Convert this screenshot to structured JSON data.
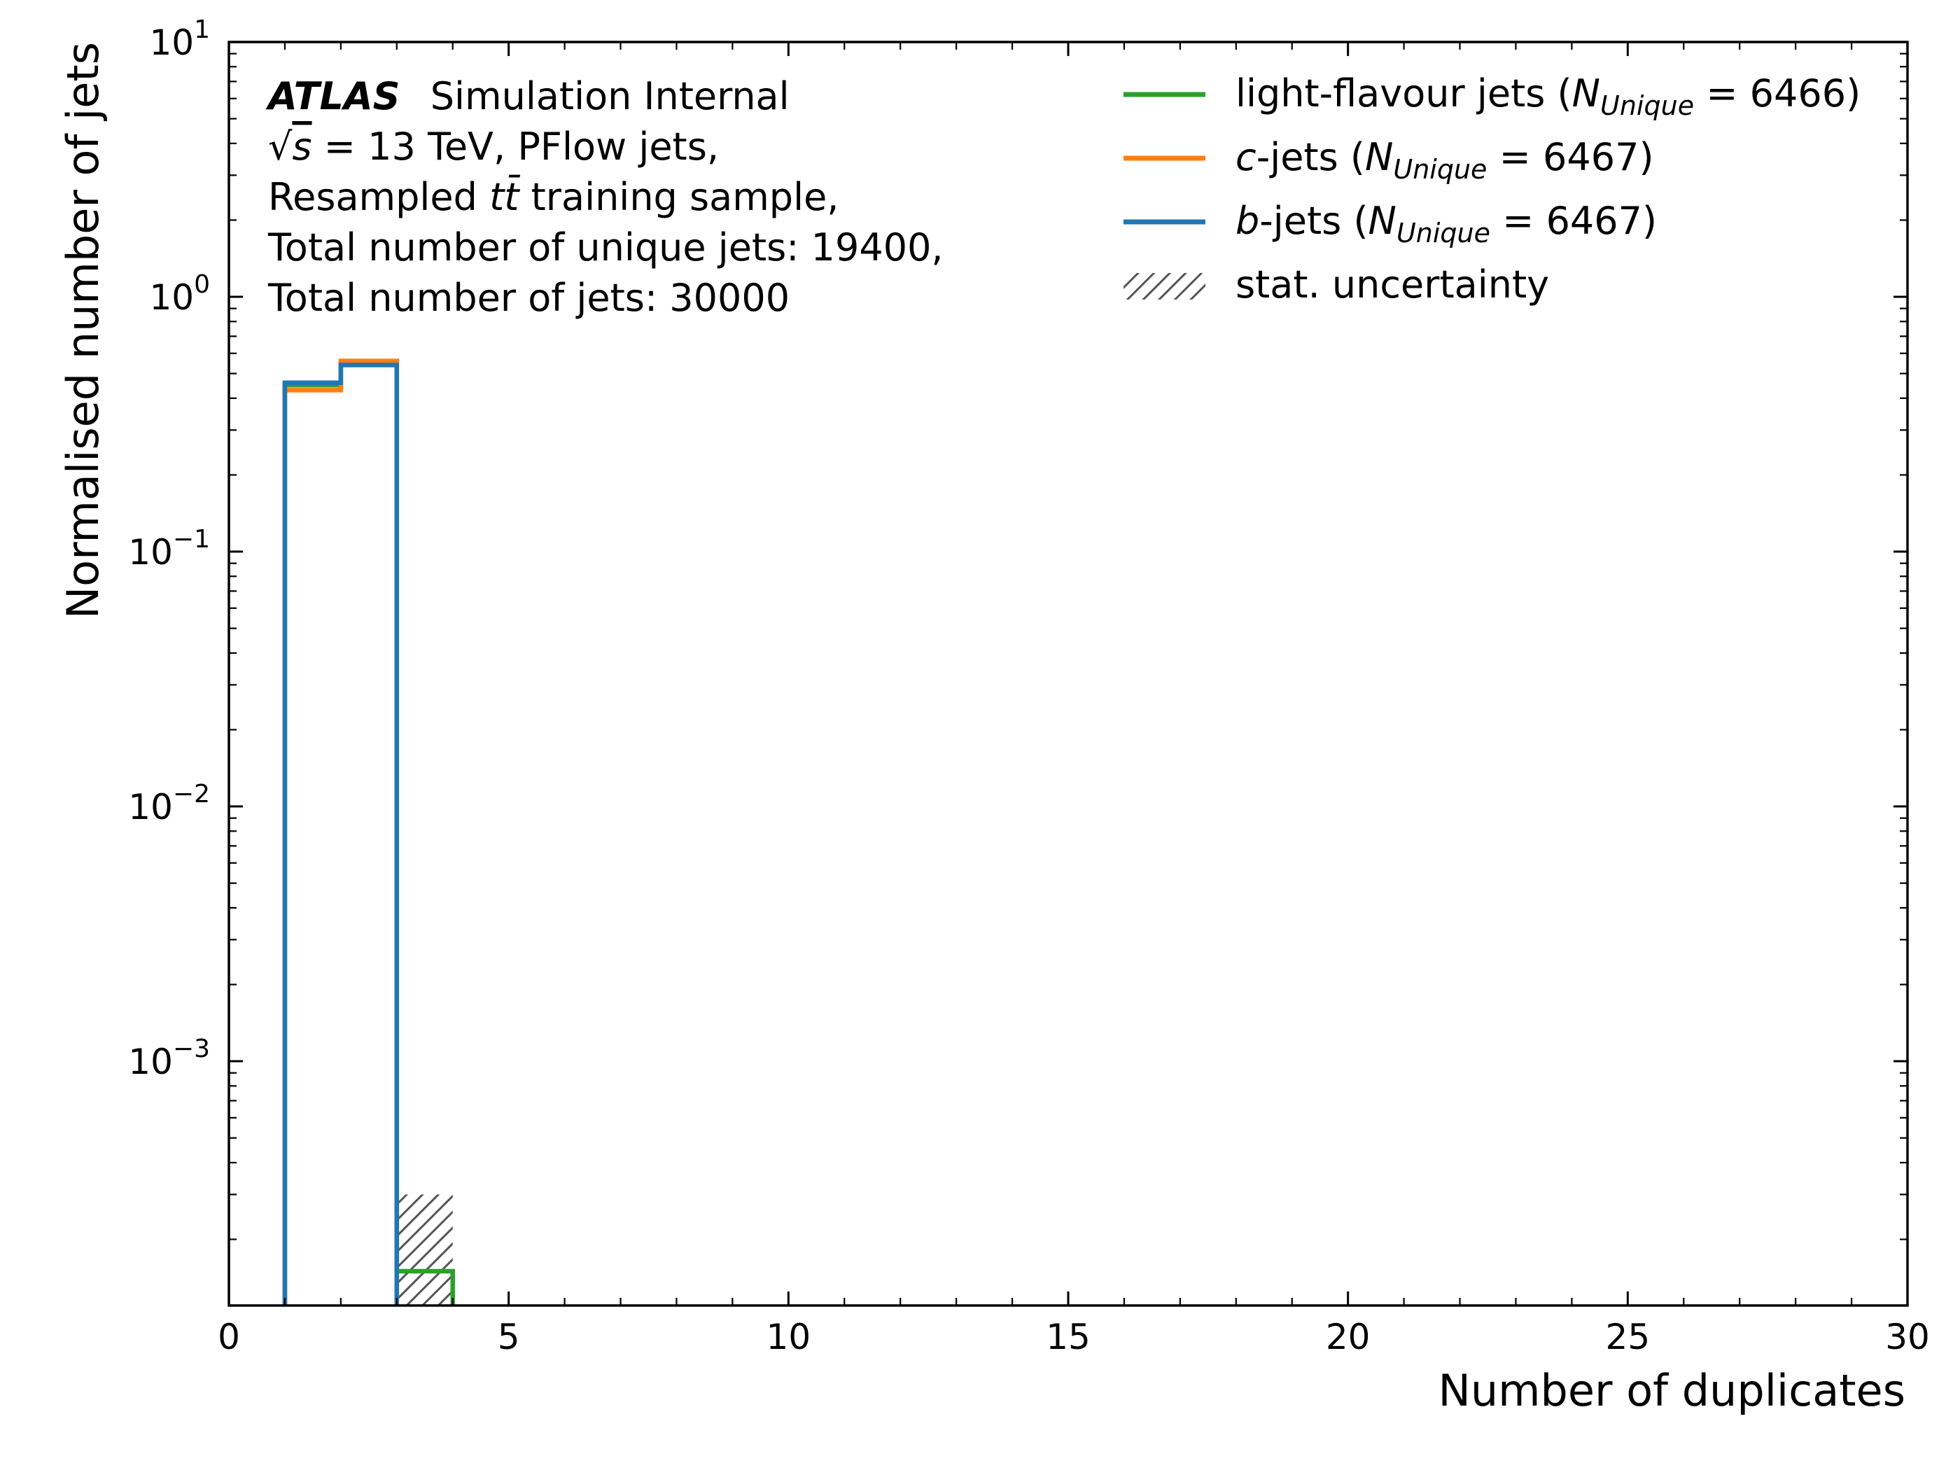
{
  "chart_data": {
    "type": "histogram-step",
    "xlabel": "Number of duplicates",
    "ylabel": "Normalised number of jets",
    "xlim": [
      0,
      30
    ],
    "ylim": [
      0.00011,
      10
    ],
    "yscale": "log",
    "x_ticks": [
      0,
      5,
      10,
      15,
      20,
      25,
      30
    ],
    "x_tick_labels": [
      "0",
      "5",
      "10",
      "15",
      "20",
      "25",
      "30"
    ],
    "y_ticks": [
      0.001,
      0.01,
      0.1,
      1,
      10
    ],
    "y_tick_labels": [
      {
        "base": "10",
        "exp": "−3"
      },
      {
        "base": "10",
        "exp": "−2"
      },
      {
        "base": "10",
        "exp": "−1"
      },
      {
        "base": "10",
        "exp": "0"
      },
      {
        "base": "10",
        "exp": "1"
      }
    ],
    "annotation": {
      "atlas": "ATLAS",
      "label": "Simulation Internal",
      "line2_sqrt": "√",
      "line2_s": "s",
      "line2_rest": " = 13 TeV, PFlow jets,",
      "line3_pre": "Resampled ",
      "line3_tt": "tt̄",
      "line3_post": " training sample,",
      "line4": "Total number of unique jets: 19400,",
      "line5": "Total number of jets: 30000"
    },
    "legend_position": "top-right",
    "legend": [
      {
        "italic": "",
        "name": "light-flavour jets",
        "n_unique": "6466",
        "color": "#2ca02c",
        "kind": "line"
      },
      {
        "italic": "c",
        "name": "-jets",
        "n_unique": "6467",
        "color": "#ff7f0e",
        "kind": "line"
      },
      {
        "italic": "b",
        "name": "-jets",
        "n_unique": "6467",
        "color": "#1f77b4",
        "kind": "line"
      },
      {
        "italic": "",
        "name": "stat. uncertainty",
        "n_unique": "",
        "color": "#555555",
        "kind": "hatch"
      }
    ],
    "legend_n_symbol": "N",
    "legend_n_sub": "Unique",
    "series": [
      {
        "name": "light-flavour jets",
        "color": "#2ca02c",
        "bin_edges": [
          1,
          2,
          3,
          4
        ],
        "values": [
          0.45,
          0.54,
          0.00015
        ]
      },
      {
        "name": "c-jets",
        "color": "#ff7f0e",
        "bin_edges": [
          1,
          2,
          3
        ],
        "values": [
          0.43,
          0.56
        ]
      },
      {
        "name": "b-jets",
        "color": "#1f77b4",
        "bin_edges": [
          1,
          2,
          3
        ],
        "values": [
          0.46,
          0.54
        ]
      }
    ],
    "uncertainty_bands": [
      {
        "x0": 3,
        "x1": 4,
        "low": 0.00011,
        "high": 0.0003
      }
    ]
  }
}
